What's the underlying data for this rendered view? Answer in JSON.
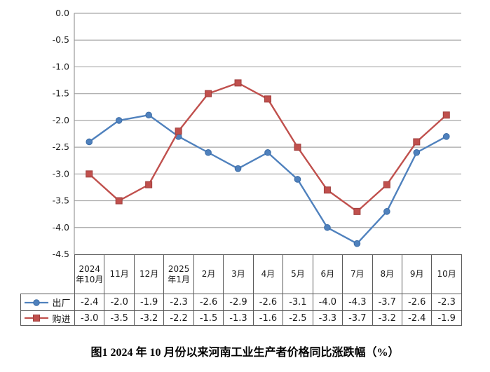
{
  "figure": {
    "caption": "图1  2024 年 10 月份以来河南工业生产者价格同比涨跌幅（%）"
  },
  "chart_data": {
    "type": "line",
    "title": "图1 2024年10月份以来河南工业生产者价格同比涨跌幅（%）",
    "categories": [
      "2024年10月",
      "11月",
      "12月",
      "2025年1月",
      "2月",
      "3月",
      "4月",
      "5月",
      "6月",
      "7月",
      "8月",
      "9月",
      "10月"
    ],
    "series": [
      {
        "name": "出厂",
        "marker": "circle",
        "color": "#4f81bd",
        "marker_edge": "#3a6ba5",
        "values": [
          -2.4,
          -2.0,
          -1.9,
          -2.3,
          -2.6,
          -2.9,
          -2.6,
          -3.1,
          -4.0,
          -4.3,
          -3.7,
          -2.6,
          -2.3
        ]
      },
      {
        "name": "购进",
        "marker": "square",
        "color": "#c0504d",
        "marker_edge": "#a03f3d",
        "values": [
          -3.0,
          -3.5,
          -3.2,
          -2.2,
          -1.5,
          -1.3,
          -1.6,
          -2.5,
          -3.3,
          -3.7,
          -3.2,
          -2.4,
          -1.9
        ]
      }
    ],
    "xlabel": "",
    "ylabel": "",
    "ylim": [
      -4.5,
      0.0
    ],
    "ytick_labels": [
      "0.0",
      "-0.5",
      "-1.0",
      "-1.5",
      "-2.0",
      "-2.5",
      "-3.0",
      "-3.5",
      "-4.0",
      "-4.5"
    ],
    "grid": true,
    "legend_position": "table-left",
    "value_decimals": 1,
    "colors": {
      "gridline": "#a6a6a6",
      "axis": "#9a9a9a",
      "table_border": "#5a5a5a",
      "tick_text": "#1f1f1f"
    }
  }
}
